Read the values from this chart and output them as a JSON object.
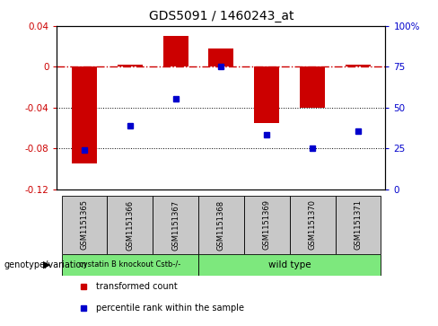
{
  "title": "GDS5091 / 1460243_at",
  "categories": [
    "GSM1151365",
    "GSM1151366",
    "GSM1151367",
    "GSM1151368",
    "GSM1151369",
    "GSM1151370",
    "GSM1151371"
  ],
  "bar_values": [
    -0.095,
    0.002,
    0.03,
    0.018,
    -0.055,
    -0.04,
    0.002
  ],
  "dot_values_left": [
    -0.082,
    -0.058,
    -0.031,
    0.0,
    -0.067,
    -0.08,
    -0.063
  ],
  "bar_color": "#cc0000",
  "dot_color": "#0000cc",
  "dashed_line_color": "#cc0000",
  "ylim_left": [
    -0.12,
    0.04
  ],
  "ylim_right": [
    0,
    100
  ],
  "yticks_left": [
    0.04,
    0,
    -0.04,
    -0.08,
    -0.12
  ],
  "yticks_right": [
    100,
    75,
    50,
    25,
    0
  ],
  "ytick_labels_left": [
    "0.04",
    "0",
    "-0.04",
    "-0.08",
    "-0.12"
  ],
  "ytick_labels_right": [
    "100%",
    "75",
    "50",
    "25",
    "0"
  ],
  "group1_label": "cystatin B knockout Cstb-/-",
  "group2_label": "wild type",
  "group_color": "#7de87d",
  "genotype_label": "genotype/variation",
  "legend_items": [
    {
      "label": "transformed count",
      "color": "#cc0000"
    },
    {
      "label": "percentile rank within the sample",
      "color": "#0000cc"
    }
  ],
  "bar_width": 0.55,
  "background_color": "#ffffff",
  "plot_bg_color": "#ffffff",
  "box_color": "#c8c8c8"
}
